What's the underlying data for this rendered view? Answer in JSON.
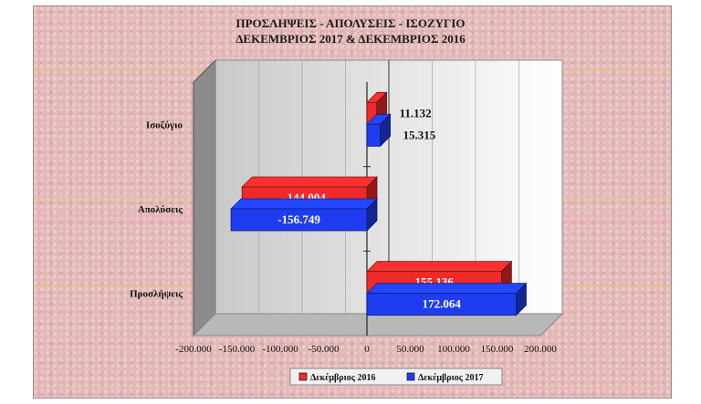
{
  "chart_data": {
    "type": "bar",
    "orientation": "horizontal",
    "title": [
      "ΠΡΟΣΛΗΨΕΙΣ - ΑΠΟΛΥΣΕΙΣ - ΙΣΟΖΥΓΙΟ",
      "ΔΕΚΕΜΒΡΙΟΣ  2017  &  ΔΕΚΕΜΒΡΙΟΣ  2016"
    ],
    "categories": [
      "Ισοζύγιο",
      "Απολύσεις",
      "Προσλήψεις"
    ],
    "series": [
      {
        "name": "Δεκέμβριος 2016",
        "color": "#ee2a2a",
        "values": [
          11132,
          -144004,
          155136
        ],
        "labels": [
          "11.132",
          "-144.004",
          "155.136"
        ]
      },
      {
        "name": "Δεκέμβριος 2017",
        "color": "#1e3df0",
        "values": [
          15315,
          -156749,
          172064
        ],
        "labels": [
          "15.315",
          "-156.749",
          "172.064"
        ]
      }
    ],
    "xlim": [
      -200000,
      200000
    ],
    "x_ticks": [
      -200000,
      -150000,
      -100000,
      -50000,
      0,
      50000,
      100000,
      150000,
      200000
    ],
    "x_tick_labels": [
      "-200.000",
      "-150.000",
      "-100.000",
      "-50.000",
      "0",
      "50.000",
      "100.000",
      "150.000",
      "200.000"
    ],
    "grid": true,
    "legend_position": "bottom"
  }
}
